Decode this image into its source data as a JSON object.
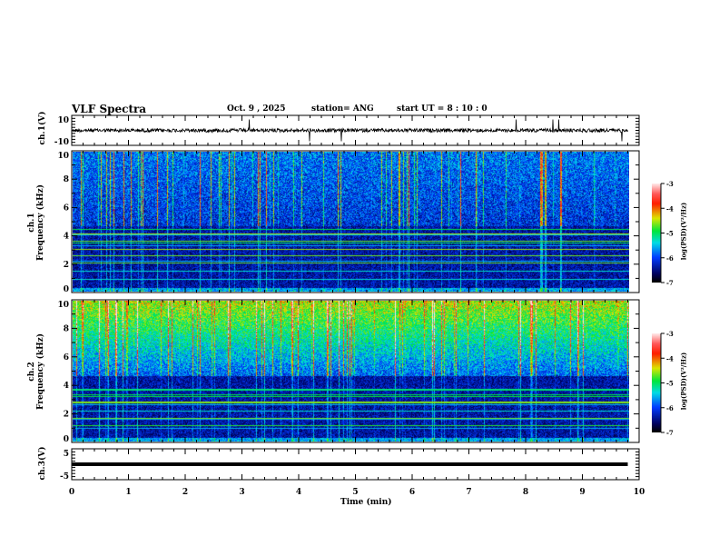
{
  "header": {
    "title": "VLF Spectra",
    "date": "Oct. 9  , 2025",
    "station": "station= ANG",
    "start": "start  UT =   8  : 10 : 0"
  },
  "chart_data": {
    "type": "heatmap",
    "title": "VLF Spectra",
    "xlabel": "Time  (min)",
    "xlim": [
      0,
      10
    ],
    "x_ticks": [
      "0",
      "1",
      "2",
      "3",
      "4",
      "5",
      "6",
      "7",
      "8",
      "9",
      "10"
    ],
    "data_end_min": 9.8,
    "panels": [
      {
        "name": "ch1-waveform",
        "ylabel": "ch.1(V)",
        "ylim": [
          -10,
          10
        ],
        "y_ticks": [
          "10",
          "-10"
        ],
        "type": "line",
        "baseline": 0
      },
      {
        "name": "ch1-spectrogram",
        "ylabel_top": "ch.1",
        "ylabel": "Frequency  (kHz)",
        "ylim": [
          0,
          10
        ],
        "y_ticks": [
          "0",
          "2",
          "4",
          "6",
          "8",
          "10"
        ],
        "type": "heatmap",
        "noise_floor_khz": 4.7
      },
      {
        "name": "ch2-spectrogram",
        "ylabel_top": "ch.2",
        "ylabel": "Frequency  (kHz)",
        "ylim": [
          0,
          10
        ],
        "y_ticks": [
          "0",
          "2",
          "4",
          "6",
          "8",
          "10"
        ],
        "type": "heatmap",
        "noise_floor_khz": 4.7
      },
      {
        "name": "ch3-waveform",
        "ylabel": "ch.3(V)",
        "ylim": [
          -5,
          5
        ],
        "y_ticks": [
          "5",
          "-5"
        ],
        "type": "line",
        "baseline": 0
      }
    ],
    "colorbar": {
      "label": "log(PSD)(V²/Hz)",
      "range": [
        -7,
        -3
      ],
      "ticks": [
        "-3",
        "-4",
        "-5",
        "-6",
        "-7"
      ]
    }
  }
}
